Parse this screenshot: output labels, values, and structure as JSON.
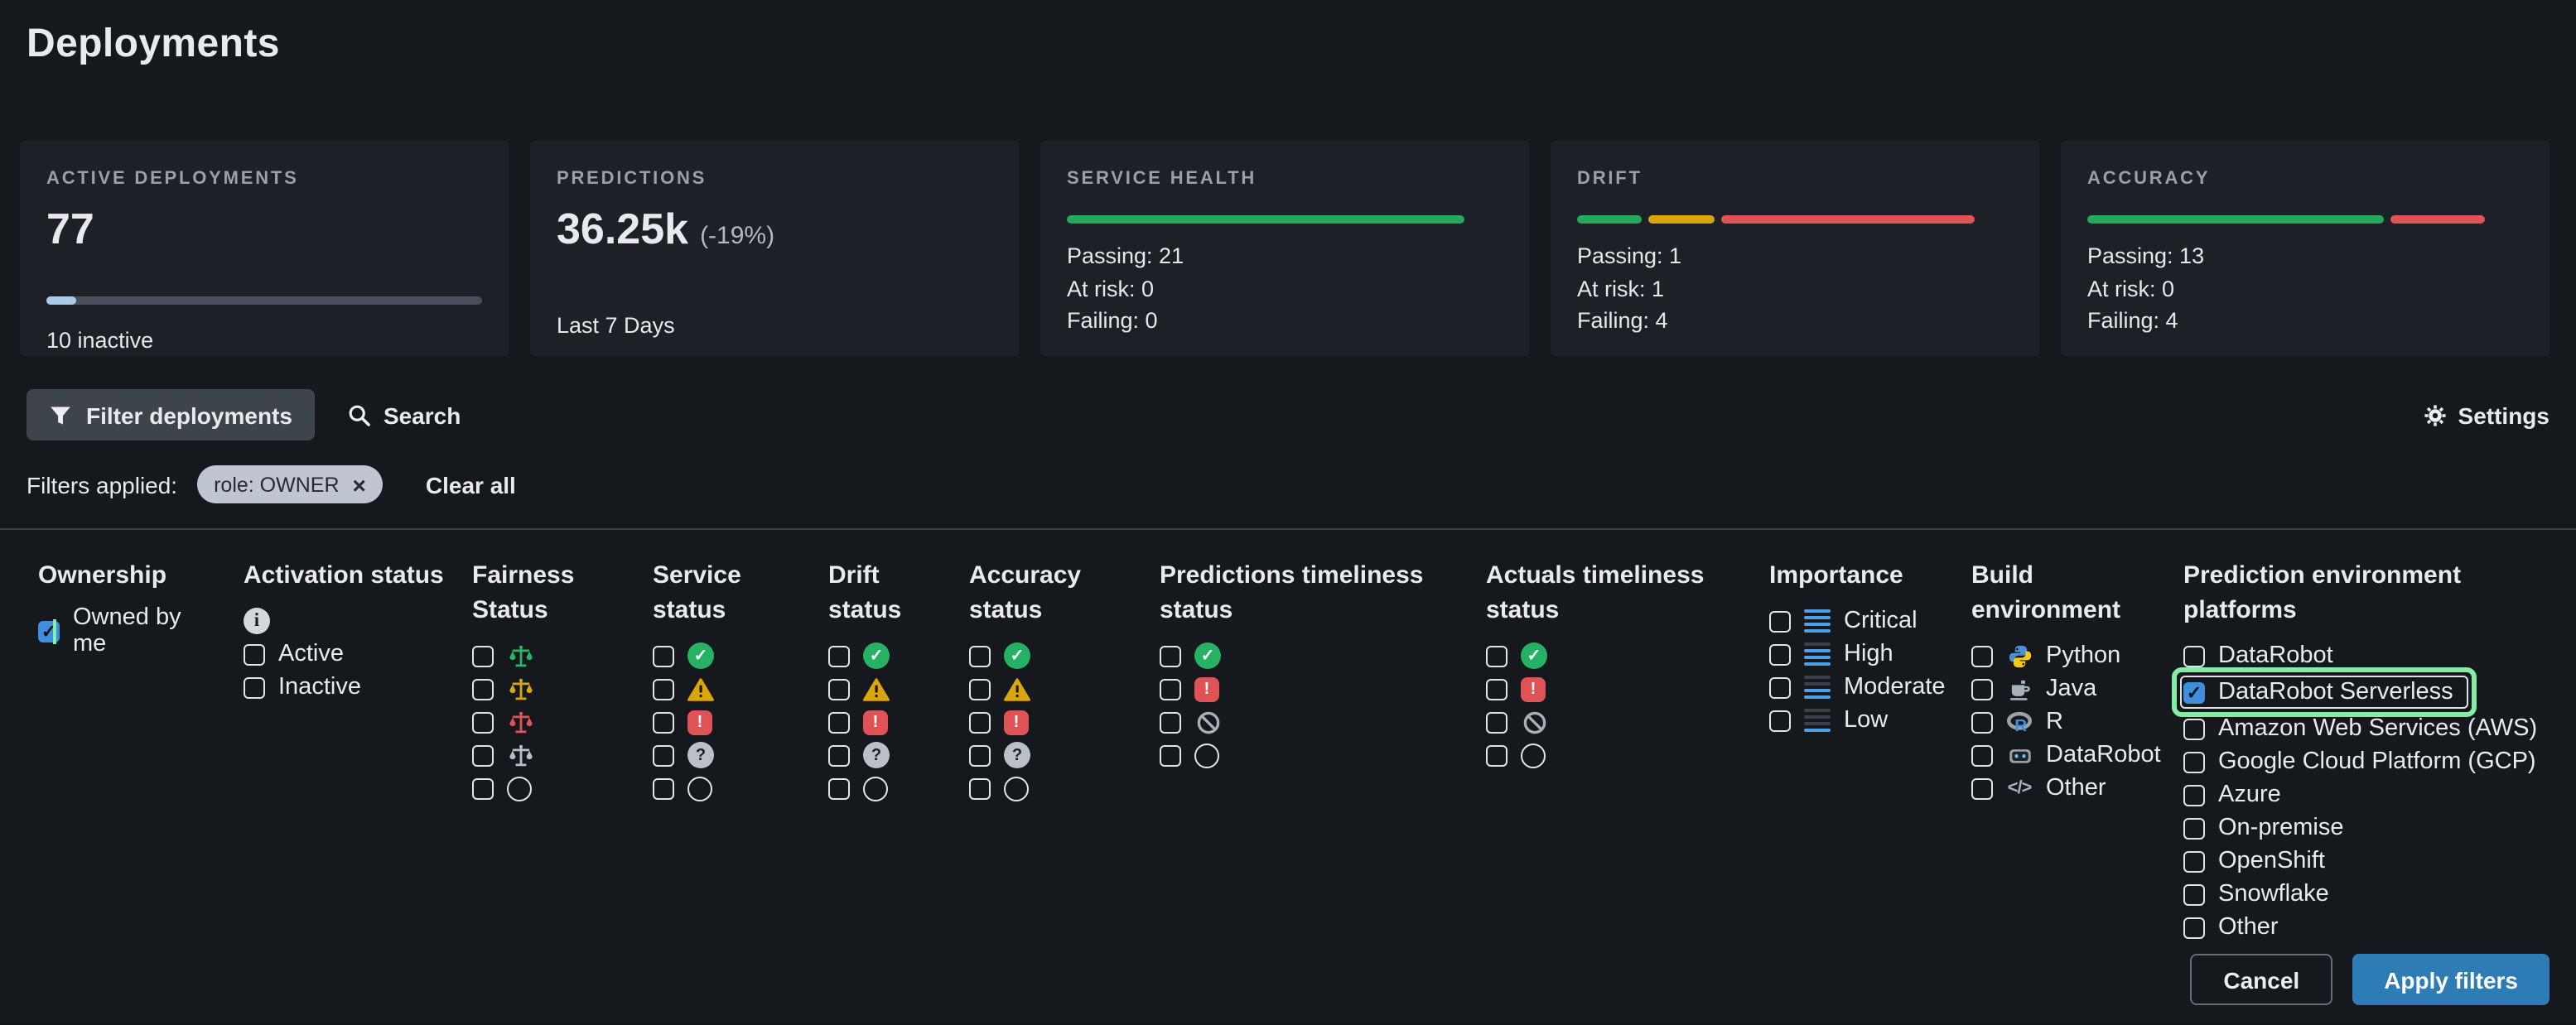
{
  "title": "Deployments",
  "cards": {
    "active": {
      "label": "ACTIVE DEPLOYMENTS",
      "value": "77",
      "progress_pct": 7,
      "subtext": "10 inactive"
    },
    "predictions": {
      "label": "PREDICTIONS",
      "value": "36.25k",
      "delta": "(-19%)",
      "subtext": "Last 7 Days"
    },
    "health": [
      {
        "label": "SERVICE HEALTH",
        "lines": [
          "Passing: 21",
          "At risk: 0",
          "Failing: 0"
        ],
        "segments": [
          {
            "color": "#24a85c",
            "pct": 100
          }
        ]
      },
      {
        "label": "DRIFT",
        "lines": [
          "Passing: 1",
          "At risk: 1",
          "Failing: 4"
        ],
        "segments": [
          {
            "color": "#24a85c",
            "pct": 17
          },
          {
            "color": "#d9a60e",
            "pct": 17
          },
          {
            "color": "#e05355",
            "pct": 66
          }
        ]
      },
      {
        "label": "ACCURACY",
        "lines": [
          "Passing: 13",
          "At risk: 0",
          "Failing: 4"
        ],
        "segments": [
          {
            "color": "#24a85c",
            "pct": 76
          },
          {
            "color": "#e05355",
            "pct": 24
          }
        ]
      }
    ]
  },
  "filter_bar": {
    "filter_button": "Filter deployments",
    "search_label": "Search",
    "settings_label": "Settings"
  },
  "filters_applied": {
    "label": "Filters applied:",
    "chips": [
      {
        "text": "role: OWNER",
        "close_icon": "close-icon"
      }
    ],
    "clear_all": "Clear all"
  },
  "filter_panel": {
    "columns": [
      {
        "heading": "Ownership",
        "items": [
          {
            "label": "Owned by me",
            "checked": true,
            "caret": true
          }
        ]
      },
      {
        "heading": "Activation status",
        "info": true,
        "items": [
          {
            "label": "Active"
          },
          {
            "label": "Inactive"
          }
        ]
      },
      {
        "heading": "Fairness Status",
        "items": [
          {
            "icon": "fairness-passing"
          },
          {
            "icon": "fairness-at-risk"
          },
          {
            "icon": "fairness-failing"
          },
          {
            "icon": "fairness-unknown"
          },
          {
            "icon": "status-empty"
          }
        ]
      },
      {
        "heading": "Service status",
        "items": [
          {
            "icon": "status-passing"
          },
          {
            "icon": "status-at-risk"
          },
          {
            "icon": "status-failing"
          },
          {
            "icon": "status-unknown"
          },
          {
            "icon": "status-empty"
          }
        ]
      },
      {
        "heading": "Drift status",
        "items": [
          {
            "icon": "status-passing"
          },
          {
            "icon": "status-at-risk"
          },
          {
            "icon": "status-failing"
          },
          {
            "icon": "status-unknown"
          },
          {
            "icon": "status-empty"
          }
        ]
      },
      {
        "heading": "Accuracy status",
        "items": [
          {
            "icon": "status-passing"
          },
          {
            "icon": "status-at-risk"
          },
          {
            "icon": "status-failing"
          },
          {
            "icon": "status-unknown"
          },
          {
            "icon": "status-empty"
          }
        ]
      },
      {
        "heading": "Predictions timeliness status",
        "items": [
          {
            "icon": "status-passing"
          },
          {
            "icon": "status-failing"
          },
          {
            "icon": "status-no-data"
          },
          {
            "icon": "status-empty"
          }
        ]
      },
      {
        "heading": "Actuals timeliness status",
        "items": [
          {
            "icon": "status-passing"
          },
          {
            "icon": "status-failing"
          },
          {
            "icon": "status-no-data"
          },
          {
            "icon": "status-empty"
          }
        ]
      },
      {
        "heading": "Importance",
        "items": [
          {
            "icon": "importance-critical",
            "label": "Critical"
          },
          {
            "icon": "importance-high",
            "label": "High"
          },
          {
            "icon": "importance-moderate",
            "label": "Moderate"
          },
          {
            "icon": "importance-low",
            "label": "Low"
          }
        ]
      },
      {
        "heading": "Build environment",
        "items": [
          {
            "icon": "python",
            "label": "Python"
          },
          {
            "icon": "java",
            "label": "Java"
          },
          {
            "icon": "r-lang",
            "label": "R"
          },
          {
            "icon": "datarobot-robot",
            "label": "DataRobot"
          },
          {
            "icon": "code",
            "label": "Other"
          }
        ]
      },
      {
        "heading": "Prediction environment platforms",
        "items": [
          {
            "label": "DataRobot"
          },
          {
            "label": "DataRobot Serverless",
            "checked": true,
            "highlighted": true
          },
          {
            "label": "Amazon Web Services (AWS)"
          },
          {
            "label": "Google Cloud Platform (GCP)"
          },
          {
            "label": "Azure"
          },
          {
            "label": "On-premise"
          },
          {
            "label": "OpenShift"
          },
          {
            "label": "Snowflake"
          },
          {
            "label": "Other"
          }
        ]
      }
    ]
  },
  "actions": {
    "cancel": "Cancel",
    "apply": "Apply filters"
  },
  "colors": {
    "page_bg": "#15181d",
    "card_bg": "#1d2127",
    "accent_checkbox_blue": "#3f8edb",
    "apply_button_blue": "#2d7cb5",
    "success_green": "#24a85c",
    "warning_yellow": "#d9a60e",
    "error_red": "#e05355",
    "highlight_annotation_green": "#85eda4",
    "progress_blue": "#a9cbe9",
    "chip_bg": "#bfc6d1"
  }
}
